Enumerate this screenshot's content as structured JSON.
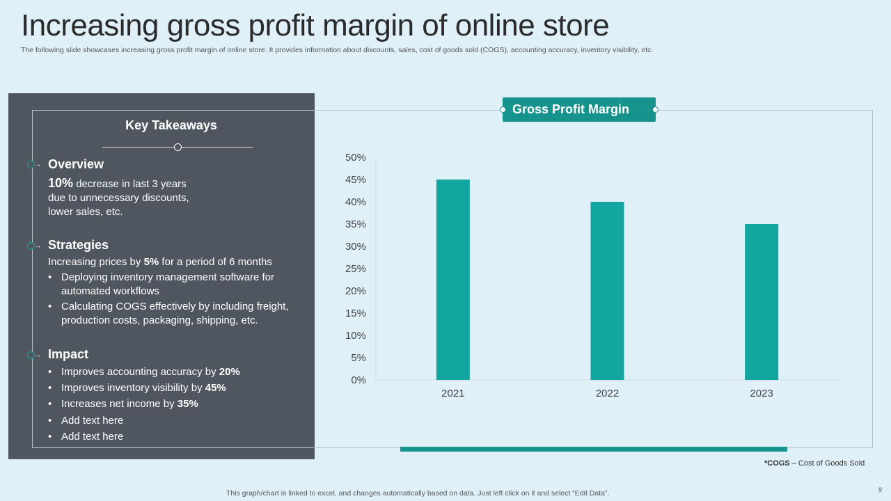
{
  "title": "Increasing gross profit margin of online store",
  "subtitle": "The following slide showcases increasing gross profit margin of online store. It provides information about discounts, sales, cost of goods sold (COGS), accounting accuracy, inventory visibility, etc.",
  "takeaways": {
    "heading": "Key Takeaways",
    "overview": {
      "heading": "Overview",
      "highlight": "10%",
      "line1_rest": " decrease in last 3 years",
      "line2": "due to unnecessary  discounts,",
      "line3": "lower sales, etc."
    },
    "strategies": {
      "heading": "Strategies",
      "intro_a": "Increasing prices by ",
      "intro_b": "5%",
      "intro_c": " for a period of 6 months",
      "bullets": [
        {
          "l1": "Deploying inventory  management  software for",
          "l2": "automated workflows"
        },
        {
          "l1": "Calculating COGS effectively by including freight,",
          "l2": "production costs, packaging, shipping, etc."
        }
      ]
    },
    "impact": {
      "heading": "Impact",
      "bullets": [
        {
          "pre": "Improves  accounting  accuracy by ",
          "bold": "20%"
        },
        {
          "pre": "Improves  inventory  visibility by ",
          "bold": "45%"
        },
        {
          "pre": "Increases  net income by ",
          "bold": "35%"
        },
        {
          "pre": "Add text here",
          "bold": ""
        },
        {
          "pre": "Add text here",
          "bold": ""
        }
      ]
    }
  },
  "chart_label": "Gross Profit Margin",
  "chart_data": {
    "type": "bar",
    "categories": [
      "2021",
      "2022",
      "2023"
    ],
    "values": [
      45,
      40,
      35
    ],
    "ylim": [
      0,
      50
    ],
    "yticks": [
      0,
      5,
      10,
      15,
      20,
      25,
      30,
      35,
      40,
      45,
      50
    ],
    "ytick_suffix": "%",
    "color": "#13a6a0",
    "title": "",
    "xlabel": "",
    "ylabel": ""
  },
  "footnote": {
    "bold": "*COGS",
    "rest": " – Cost of Goods Sold"
  },
  "footer": "This graph/chart is linked to excel,  and changes automatically based on data. Just left click on it and select “Edit Data”.",
  "page_number": "9",
  "colors": {
    "accent": "#17938d",
    "panel": "#4f565f",
    "background": "#dff0f9"
  }
}
